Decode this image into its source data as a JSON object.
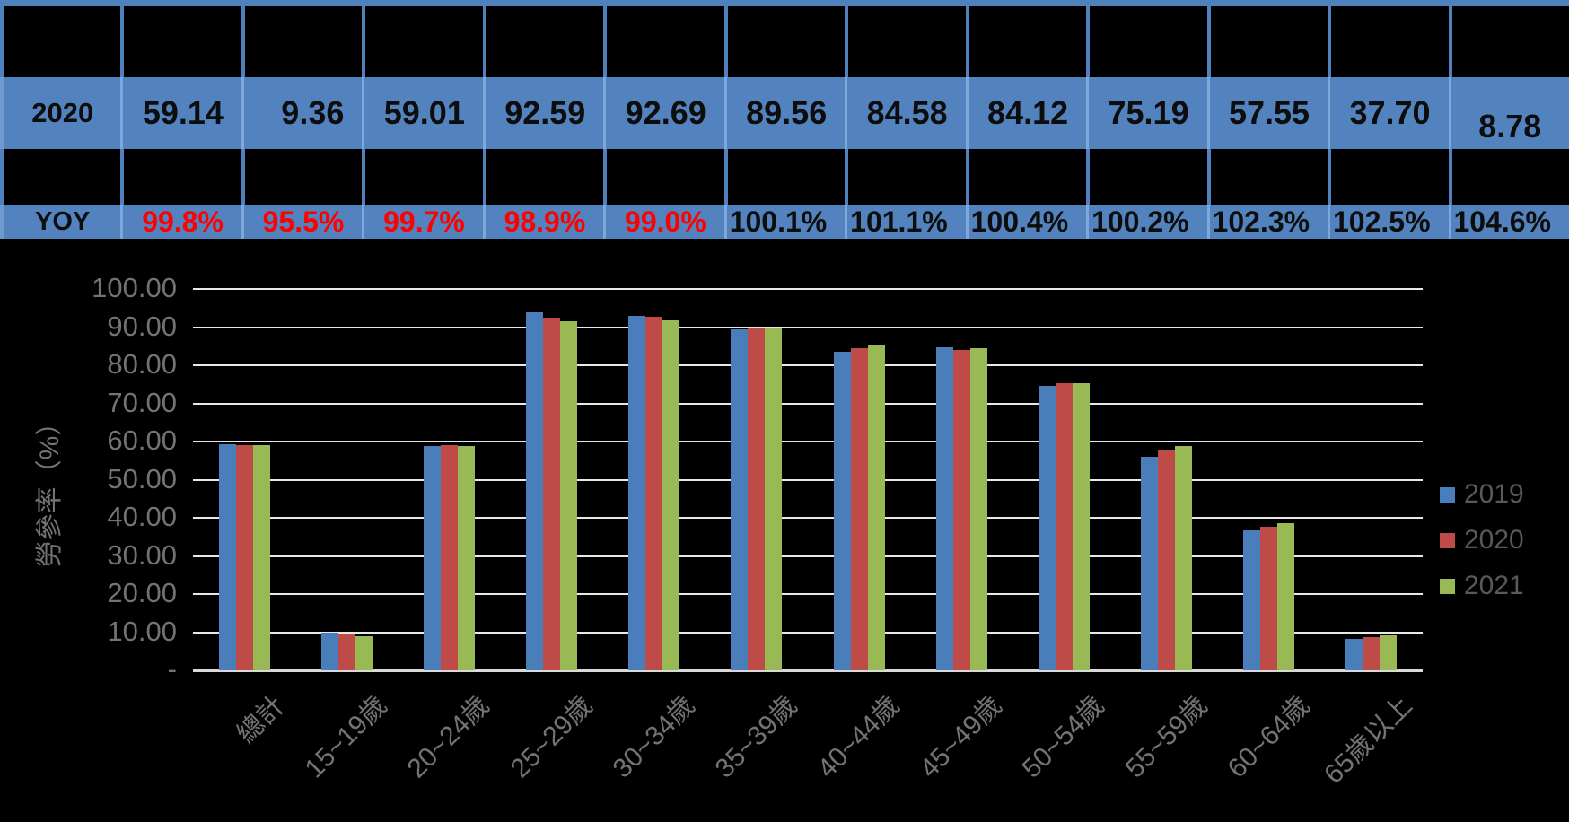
{
  "table": {
    "row_2020": {
      "label": "2020",
      "values": [
        "59.14",
        "9.36",
        "59.01",
        "92.59",
        "92.69",
        "89.56",
        "84.58",
        "84.12",
        "75.19",
        "57.55",
        "37.70",
        "8.78"
      ]
    },
    "row_yoy": {
      "label": "YOY",
      "values": [
        "99.8%",
        "95.5%",
        "99.7%",
        "98.9%",
        "99.0%",
        "100.1%",
        "101.1%",
        "100.4%",
        "100.2%",
        "102.3%",
        "102.5%",
        "104.6%"
      ],
      "red_count": 5
    },
    "colors": {
      "row_background": "#5283BE",
      "grid_border": "#4F81BD",
      "red_text": "#FF0000",
      "black_text": "#0D0D0D"
    }
  },
  "chart_data": {
    "type": "bar",
    "title": "",
    "ylabel": "勞參率（%）",
    "xlabel": "",
    "ylim": [
      0,
      100
    ],
    "grid": "horizontal light gridlines on black background",
    "legend_position": "right",
    "y_ticks": [
      {
        "label": "100.00",
        "value": 100
      },
      {
        "label": "90.00",
        "value": 90
      },
      {
        "label": "80.00",
        "value": 80
      },
      {
        "label": "70.00",
        "value": 70
      },
      {
        "label": "60.00",
        "value": 60
      },
      {
        "label": "50.00",
        "value": 50
      },
      {
        "label": "40.00",
        "value": 40
      },
      {
        "label": "30.00",
        "value": 30
      },
      {
        "label": "20.00",
        "value": 20
      },
      {
        "label": "10.00",
        "value": 10
      },
      {
        "label": "-",
        "value": 0
      }
    ],
    "categories": [
      "總計",
      "15~19歲",
      "20~24歲",
      "25~29歲",
      "30~34歲",
      "35~39歲",
      "40~44歲",
      "45~49歲",
      "50~54歲",
      "55~59歲",
      "60~64歲",
      "65歲以上"
    ],
    "series": [
      {
        "name": "2019",
        "color": "#4A7EBB",
        "values": [
          59.2,
          9.9,
          58.9,
          93.9,
          92.9,
          89.3,
          83.6,
          84.7,
          74.5,
          56.0,
          36.8,
          8.2
        ]
      },
      {
        "name": "2020",
        "color": "#BE4B48",
        "values": [
          59.14,
          9.36,
          59.01,
          92.59,
          92.69,
          89.56,
          84.58,
          84.12,
          75.19,
          57.55,
          37.7,
          8.78
        ]
      },
      {
        "name": "2021",
        "color": "#98B954",
        "values": [
          59.0,
          8.9,
          58.8,
          91.6,
          91.8,
          89.7,
          85.5,
          84.5,
          75.3,
          58.9,
          38.6,
          9.2
        ]
      }
    ]
  }
}
